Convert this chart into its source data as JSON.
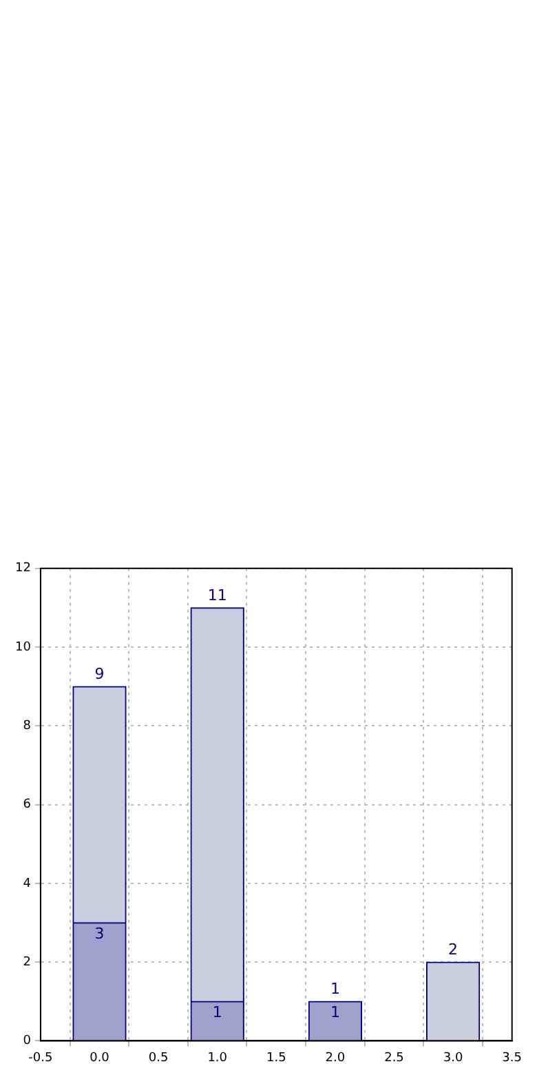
{
  "chart_data": {
    "type": "bar",
    "x": [
      0,
      1,
      2,
      3
    ],
    "stacked": true,
    "series": [
      {
        "color": "#a0a0cc",
        "values": [
          3,
          1,
          1,
          null
        ],
        "value_labels": [
          "3",
          "1",
          "1",
          null
        ]
      },
      {
        "color": "#ccccdf",
        "values": [
          6,
          10,
          0,
          2
        ]
      }
    ],
    "totals": [
      "9",
      "11",
      "1",
      "2"
    ],
    "xlim": [
      -0.5,
      3.5
    ],
    "xticks": [
      {
        "value": -0.5,
        "label": "-0.5"
      },
      {
        "value": 0,
        "label": "0.0"
      },
      {
        "value": 0.5,
        "label": "0.5"
      },
      {
        "value": 1,
        "label": "1.0"
      },
      {
        "value": 1.5,
        "label": "1.5"
      },
      {
        "value": 2,
        "label": "2.0"
      },
      {
        "value": 2.5,
        "label": "2.5"
      },
      {
        "value": 3,
        "label": "3.0"
      },
      {
        "value": 3.5,
        "label": "3.5"
      }
    ],
    "ylim": [
      0,
      12
    ],
    "yticks": [
      0,
      2,
      4,
      6,
      8,
      10,
      12
    ],
    "grid": true
  }
}
